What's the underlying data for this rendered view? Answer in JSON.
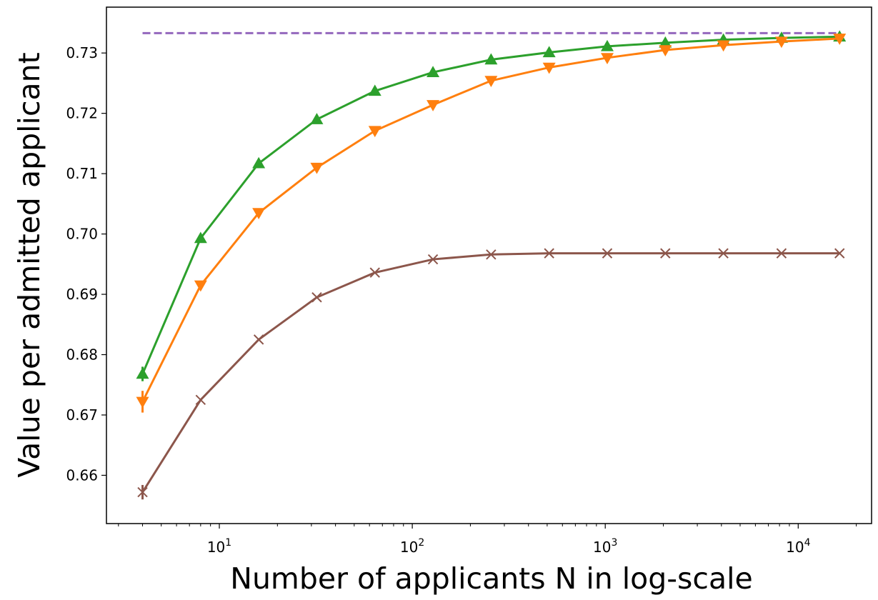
{
  "chart_data": {
    "type": "line",
    "xlabel": "Number of applicants N in log-scale",
    "ylabel": "Value per admitted applicant",
    "xscale": "log",
    "xlim": [
      2.6,
      24000
    ],
    "ylim": [
      0.652,
      0.7376
    ],
    "grid": false,
    "x": [
      4,
      8,
      16,
      32,
      64,
      128,
      256,
      512,
      1024,
      2048,
      4096,
      8192,
      16384
    ],
    "x_ticks": [
      {
        "value": 10,
        "base": "10",
        "exp": "1"
      },
      {
        "value": 100,
        "base": "10",
        "exp": "2"
      },
      {
        "value": 1000,
        "base": "10",
        "exp": "3"
      },
      {
        "value": 10000,
        "base": "10",
        "exp": "4"
      }
    ],
    "y_ticks": [
      0.66,
      0.67,
      0.68,
      0.69,
      0.7,
      0.71,
      0.72,
      0.73
    ],
    "y_tick_labels": [
      "0.66",
      "0.67",
      "0.68",
      "0.69",
      "0.70",
      "0.71",
      "0.72",
      "0.73"
    ],
    "series": [
      {
        "color": "#2ca02c",
        "marker": "triangle-up",
        "values": [
          0.6768,
          0.6993,
          0.7117,
          0.719,
          0.7237,
          0.7268,
          0.7289,
          0.7301,
          0.7311,
          0.7317,
          0.7322,
          0.7325,
          0.7327
        ],
        "error": [
          0.0012,
          0,
          0,
          0,
          0,
          0,
          0,
          0,
          0,
          0,
          0,
          0,
          0
        ]
      },
      {
        "color": "#ff7f0e",
        "marker": "triangle-down",
        "values": [
          0.6722,
          0.6915,
          0.7035,
          0.711,
          0.7171,
          0.7214,
          0.7254,
          0.7276,
          0.7292,
          0.7305,
          0.7313,
          0.7319,
          0.7324
        ],
        "error": [
          0.0018,
          0,
          0,
          0,
          0,
          0,
          0,
          0,
          0,
          0,
          0,
          0,
          0
        ]
      },
      {
        "color": "#8c564b",
        "marker": "x",
        "values": [
          0.6572,
          0.6725,
          0.6825,
          0.6895,
          0.6936,
          0.6958,
          0.6966,
          0.6968,
          0.6968,
          0.6968,
          0.6968,
          0.6968,
          0.6968
        ],
        "error": [
          0.0012,
          0,
          0,
          0,
          0,
          0,
          0,
          0,
          0,
          0,
          0,
          0,
          0
        ]
      }
    ],
    "reference_line": {
      "color": "#9467bd",
      "style": "dashed",
      "value": 0.7333,
      "x_range": [
        4,
        16384
      ]
    }
  }
}
